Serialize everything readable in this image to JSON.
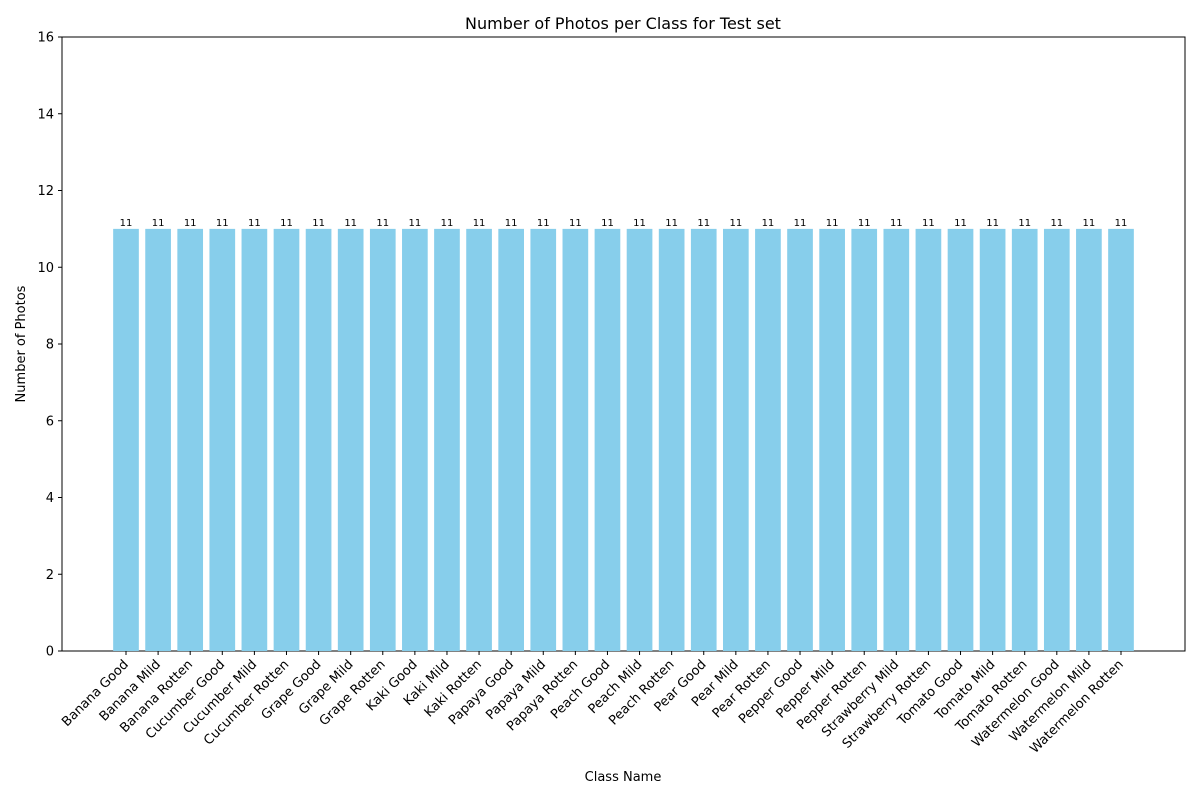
{
  "chart_data": {
    "type": "bar",
    "title": "Number of Photos per Class for Test set",
    "xlabel": "Class Name",
    "ylabel": "Number of Photos",
    "ylim": [
      0,
      16
    ],
    "yticks": [
      0,
      2,
      4,
      6,
      8,
      10,
      12,
      14,
      16
    ],
    "bar_color": "#87CEEB",
    "grid": false,
    "categories": [
      "Banana Good",
      "Banana Mild",
      "Banana Rotten",
      "Cucumber Good",
      "Cucumber Mild",
      "Cucumber Rotten",
      "Grape Good",
      "Grape Mild",
      "Grape Rotten",
      "Kaki Good",
      "Kaki Mild",
      "Kaki Rotten",
      "Papaya Good",
      "Papaya Mild",
      "Papaya Rotten",
      "Peach Good",
      "Peach Mild",
      "Peach Rotten",
      "Pear Good",
      "Pear Mild",
      "Pear Rotten",
      "Pepper Good",
      "Pepper Mild",
      "Pepper Rotten",
      "Strawberry Mild",
      "Strawberry Rotten",
      "Tomato Good",
      "Tomato Mild",
      "Tomato Rotten",
      "Watermelon Good",
      "Watermelon Mild",
      "Watermelon Rotten"
    ],
    "values": [
      11,
      11,
      11,
      11,
      11,
      11,
      11,
      11,
      11,
      11,
      11,
      11,
      11,
      11,
      11,
      11,
      11,
      11,
      11,
      11,
      11,
      11,
      11,
      11,
      11,
      11,
      11,
      11,
      11,
      11,
      11,
      11
    ]
  }
}
